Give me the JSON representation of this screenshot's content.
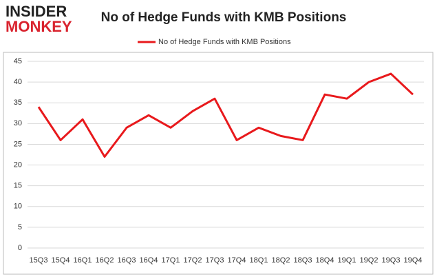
{
  "logo": {
    "line1": "INSIDER",
    "line2": "MONKEY"
  },
  "chart_data": {
    "type": "line",
    "title": "No of Hedge Funds with KMB Positions",
    "categories": [
      "15Q3",
      "15Q4",
      "16Q1",
      "16Q2",
      "16Q3",
      "16Q4",
      "17Q1",
      "17Q2",
      "17Q3",
      "17Q4",
      "18Q1",
      "18Q2",
      "18Q3",
      "18Q4",
      "19Q1",
      "19Q2",
      "19Q3",
      "19Q4"
    ],
    "series": [
      {
        "name": "No of Hedge Funds with KMB Positions",
        "color": "#e8191c",
        "values": [
          34,
          26,
          31,
          22,
          29,
          32,
          29,
          33,
          36,
          26,
          29,
          27,
          26,
          37,
          36,
          40,
          42,
          37
        ]
      }
    ],
    "ylim": [
      0,
      45
    ],
    "yticks": [
      0,
      5,
      10,
      15,
      20,
      25,
      30,
      35,
      40,
      45
    ],
    "grid": true,
    "legend": "top"
  }
}
